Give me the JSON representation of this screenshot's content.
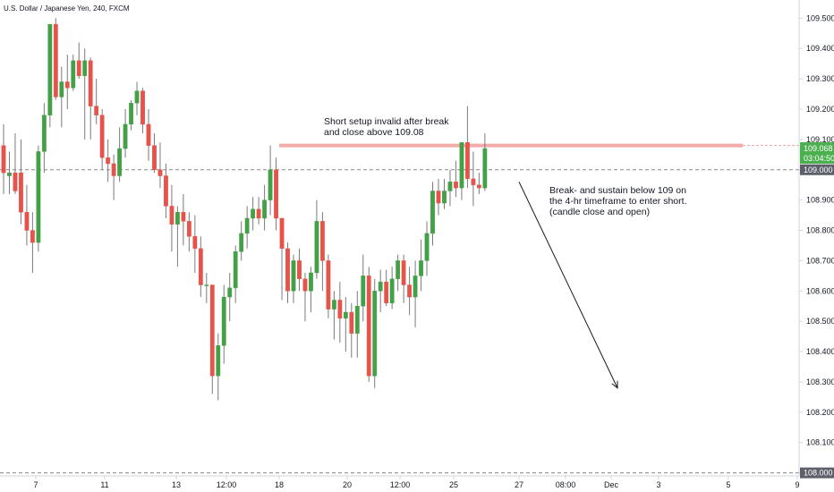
{
  "chart_data": {
    "type": "candlestick",
    "title": "U.S. Dollar / Japanese Yen, 240, FXCM",
    "colors": {
      "up": "#43a047",
      "down": "#e5534b",
      "resistance": "#f4a1a1",
      "dashed": "#888888",
      "axis_text": "#131722",
      "price_badge": "#4caf50",
      "level_badge": "#5d606b"
    },
    "ylim": [
      107.99,
      109.56
    ],
    "yticks": [
      "109.500",
      "109.400",
      "109.300",
      "109.200",
      "109.100",
      "109.000",
      "108.900",
      "108.800",
      "108.700",
      "108.600",
      "108.500",
      "108.400",
      "108.300",
      "108.200",
      "108.100",
      "108.000"
    ],
    "xticks": [
      "7",
      "11",
      "13",
      "12:00",
      "18",
      "20",
      "12:00",
      "25",
      "27",
      "08:00",
      "Dec",
      "3",
      "5",
      "9"
    ],
    "candles": [
      {
        "o": 109.08,
        "h": 109.15,
        "l": 108.92,
        "c": 108.99
      },
      {
        "o": 108.98,
        "h": 109.06,
        "l": 108.92,
        "c": 108.99
      },
      {
        "o": 108.99,
        "h": 109.12,
        "l": 108.92,
        "c": 108.93
      },
      {
        "o": 108.99,
        "h": 109.1,
        "l": 108.82,
        "c": 108.86
      },
      {
        "o": 108.86,
        "h": 108.95,
        "l": 108.75,
        "c": 108.8
      },
      {
        "o": 108.8,
        "h": 108.86,
        "l": 108.66,
        "c": 108.76
      },
      {
        "o": 108.76,
        "h": 109.08,
        "l": 108.73,
        "c": 109.06
      },
      {
        "o": 109.06,
        "h": 109.22,
        "l": 108.99,
        "c": 109.18
      },
      {
        "o": 109.18,
        "h": 109.48,
        "l": 109.14,
        "c": 109.48
      },
      {
        "o": 109.48,
        "h": 109.5,
        "l": 109.23,
        "c": 109.24
      },
      {
        "o": 109.24,
        "h": 109.34,
        "l": 109.14,
        "c": 109.29
      },
      {
        "o": 109.29,
        "h": 109.38,
        "l": 109.2,
        "c": 109.27
      },
      {
        "o": 109.27,
        "h": 109.38,
        "l": 109.26,
        "c": 109.36
      },
      {
        "o": 109.36,
        "h": 109.42,
        "l": 109.3,
        "c": 109.31
      },
      {
        "o": 109.31,
        "h": 109.4,
        "l": 109.1,
        "c": 109.36
      },
      {
        "o": 109.36,
        "h": 109.37,
        "l": 109.1,
        "c": 109.21
      },
      {
        "o": 109.21,
        "h": 109.3,
        "l": 109.15,
        "c": 109.18
      },
      {
        "o": 109.18,
        "h": 109.2,
        "l": 109.0,
        "c": 109.04
      },
      {
        "o": 109.04,
        "h": 109.1,
        "l": 108.96,
        "c": 109.02
      },
      {
        "o": 109.02,
        "h": 109.05,
        "l": 108.9,
        "c": 108.98
      },
      {
        "o": 108.98,
        "h": 109.14,
        "l": 108.96,
        "c": 109.07
      },
      {
        "o": 109.07,
        "h": 109.2,
        "l": 109.04,
        "c": 109.15
      },
      {
        "o": 109.15,
        "h": 109.23,
        "l": 109.13,
        "c": 109.22
      },
      {
        "o": 109.22,
        "h": 109.29,
        "l": 109.18,
        "c": 109.26
      },
      {
        "o": 109.26,
        "h": 109.27,
        "l": 109.12,
        "c": 109.15
      },
      {
        "o": 109.15,
        "h": 109.2,
        "l": 109.03,
        "c": 109.08
      },
      {
        "o": 109.08,
        "h": 109.12,
        "l": 108.99,
        "c": 109.0
      },
      {
        "o": 109.0,
        "h": 109.09,
        "l": 108.94,
        "c": 108.98
      },
      {
        "o": 108.98,
        "h": 109.02,
        "l": 108.84,
        "c": 108.88
      },
      {
        "o": 108.88,
        "h": 108.95,
        "l": 108.73,
        "c": 108.82
      },
      {
        "o": 108.82,
        "h": 108.88,
        "l": 108.68,
        "c": 108.86
      },
      {
        "o": 108.86,
        "h": 108.92,
        "l": 108.75,
        "c": 108.83
      },
      {
        "o": 108.83,
        "h": 108.86,
        "l": 108.73,
        "c": 108.78
      },
      {
        "o": 108.78,
        "h": 108.85,
        "l": 108.66,
        "c": 108.74
      },
      {
        "o": 108.74,
        "h": 108.78,
        "l": 108.58,
        "c": 108.62
      },
      {
        "o": 108.62,
        "h": 108.66,
        "l": 108.56,
        "c": 108.62
      },
      {
        "o": 108.62,
        "h": 108.62,
        "l": 108.26,
        "c": 108.32
      },
      {
        "o": 108.32,
        "h": 108.46,
        "l": 108.24,
        "c": 108.42
      },
      {
        "o": 108.42,
        "h": 108.62,
        "l": 108.36,
        "c": 108.58
      },
      {
        "o": 108.58,
        "h": 108.66,
        "l": 108.5,
        "c": 108.61
      },
      {
        "o": 108.61,
        "h": 108.75,
        "l": 108.56,
        "c": 108.73
      },
      {
        "o": 108.73,
        "h": 108.83,
        "l": 108.7,
        "c": 108.79
      },
      {
        "o": 108.79,
        "h": 108.88,
        "l": 108.74,
        "c": 108.84
      },
      {
        "o": 108.84,
        "h": 108.91,
        "l": 108.8,
        "c": 108.87
      },
      {
        "o": 108.87,
        "h": 108.91,
        "l": 108.82,
        "c": 108.84
      },
      {
        "o": 108.84,
        "h": 108.95,
        "l": 108.8,
        "c": 108.9
      },
      {
        "o": 108.9,
        "h": 109.08,
        "l": 108.85,
        "c": 109.0
      },
      {
        "o": 109.0,
        "h": 109.04,
        "l": 108.8,
        "c": 108.84
      },
      {
        "o": 108.84,
        "h": 108.84,
        "l": 108.57,
        "c": 108.74
      },
      {
        "o": 108.74,
        "h": 108.76,
        "l": 108.56,
        "c": 108.6
      },
      {
        "o": 108.6,
        "h": 108.72,
        "l": 108.56,
        "c": 108.7
      },
      {
        "o": 108.7,
        "h": 108.74,
        "l": 108.6,
        "c": 108.64
      },
      {
        "o": 108.64,
        "h": 108.66,
        "l": 108.5,
        "c": 108.6
      },
      {
        "o": 108.6,
        "h": 108.68,
        "l": 108.53,
        "c": 108.66
      },
      {
        "o": 108.66,
        "h": 108.9,
        "l": 108.64,
        "c": 108.83
      },
      {
        "o": 108.83,
        "h": 108.86,
        "l": 108.6,
        "c": 108.7
      },
      {
        "o": 108.7,
        "h": 108.72,
        "l": 108.51,
        "c": 108.54
      },
      {
        "o": 108.54,
        "h": 108.6,
        "l": 108.44,
        "c": 108.57
      },
      {
        "o": 108.57,
        "h": 108.63,
        "l": 108.43,
        "c": 108.51
      },
      {
        "o": 108.51,
        "h": 108.58,
        "l": 108.4,
        "c": 108.53
      },
      {
        "o": 108.53,
        "h": 108.56,
        "l": 108.38,
        "c": 108.46
      },
      {
        "o": 108.46,
        "h": 108.6,
        "l": 108.38,
        "c": 108.55
      },
      {
        "o": 108.55,
        "h": 108.72,
        "l": 108.5,
        "c": 108.65
      },
      {
        "o": 108.65,
        "h": 108.68,
        "l": 108.3,
        "c": 108.32
      },
      {
        "o": 108.32,
        "h": 108.64,
        "l": 108.28,
        "c": 108.6
      },
      {
        "o": 108.6,
        "h": 108.67,
        "l": 108.53,
        "c": 108.63
      },
      {
        "o": 108.63,
        "h": 108.67,
        "l": 108.55,
        "c": 108.56
      },
      {
        "o": 108.56,
        "h": 108.68,
        "l": 108.54,
        "c": 108.64
      },
      {
        "o": 108.64,
        "h": 108.72,
        "l": 108.6,
        "c": 108.7
      },
      {
        "o": 108.7,
        "h": 108.72,
        "l": 108.56,
        "c": 108.62
      },
      {
        "o": 108.62,
        "h": 108.68,
        "l": 108.52,
        "c": 108.58
      },
      {
        "o": 108.58,
        "h": 108.7,
        "l": 108.48,
        "c": 108.65
      },
      {
        "o": 108.65,
        "h": 108.77,
        "l": 108.6,
        "c": 108.7
      },
      {
        "o": 108.7,
        "h": 108.83,
        "l": 108.65,
        "c": 108.79
      },
      {
        "o": 108.79,
        "h": 108.96,
        "l": 108.75,
        "c": 108.93
      },
      {
        "o": 108.93,
        "h": 108.97,
        "l": 108.85,
        "c": 108.89
      },
      {
        "o": 108.89,
        "h": 108.97,
        "l": 108.87,
        "c": 108.93
      },
      {
        "o": 108.93,
        "h": 109.0,
        "l": 108.88,
        "c": 108.96
      },
      {
        "o": 108.96,
        "h": 109.03,
        "l": 108.91,
        "c": 108.94
      },
      {
        "o": 108.94,
        "h": 109.09,
        "l": 108.9,
        "c": 109.09
      },
      {
        "o": 109.09,
        "h": 109.21,
        "l": 108.94,
        "c": 108.97
      },
      {
        "o": 108.97,
        "h": 109.06,
        "l": 108.88,
        "c": 108.95
      },
      {
        "o": 108.95,
        "h": 108.99,
        "l": 108.92,
        "c": 108.94
      },
      {
        "o": 108.94,
        "h": 109.12,
        "l": 108.93,
        "c": 109.07
      }
    ],
    "levels": [
      {
        "name": "resistance",
        "value": 109.08
      },
      {
        "name": "support",
        "value": 109.0
      },
      {
        "name": "bottom",
        "value": 108.0
      }
    ],
    "last_price_label": "109.068",
    "countdown_label": "03:04:50",
    "level_label": "109.000",
    "bottom_label": "108.000",
    "annotation_top": [
      "Short setup invalid after break",
      "and close above 109.08"
    ],
    "annotation_right": [
      "Break- and sustain below 109 on",
      "the 4-hr timeframe to enter short.",
      "(candle close and open)"
    ],
    "arrow": {
      "from": {
        "x": "27",
        "y": 108.96
      },
      "to": {
        "x": "08:00",
        "y": 108.28
      }
    }
  }
}
